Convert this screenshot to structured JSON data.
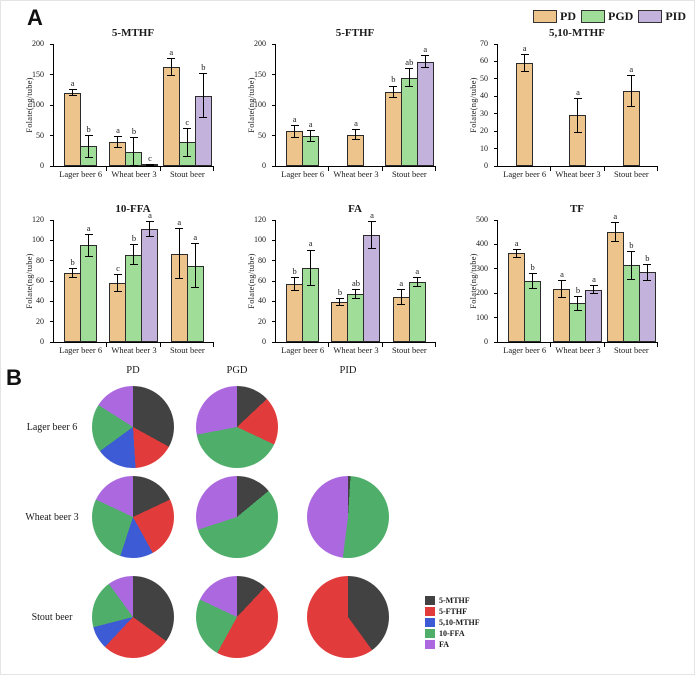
{
  "panel_a": {
    "label": "A",
    "legend": [
      {
        "name": "PD",
        "color": "#EDC48C"
      },
      {
        "name": "PGD",
        "color": "#A0DD99"
      },
      {
        "name": "PID",
        "color": "#C2B2DC"
      }
    ]
  },
  "chart_data": [
    {
      "type": "bar",
      "title": "5-MTHF",
      "ylabel": "Folate(ng/tube)",
      "ylim": [
        0,
        200
      ],
      "ytick_step": 50,
      "categories": [
        "Lager beer 6",
        "Wheat beer 3",
        "Stout beer"
      ],
      "series_names": [
        "PD",
        "PGD",
        "PID"
      ],
      "groups": [
        [
          {
            "series": "PD",
            "value": 120,
            "err": 6,
            "letter": "a"
          },
          {
            "series": "PGD",
            "value": 32,
            "err": 19,
            "letter": "b"
          }
        ],
        [
          {
            "series": "PD",
            "value": 40,
            "err": 10,
            "letter": "a"
          },
          {
            "series": "PGD",
            "value": 23,
            "err": 25,
            "letter": "b"
          },
          {
            "series": "PID",
            "value": 2,
            "err": 2,
            "letter": "c"
          }
        ],
        [
          {
            "series": "PD",
            "value": 162,
            "err": 15,
            "letter": "a"
          },
          {
            "series": "PGD",
            "value": 39,
            "err": 24,
            "letter": "c"
          },
          {
            "series": "PID",
            "value": 115,
            "err": 37,
            "letter": "b"
          }
        ]
      ]
    },
    {
      "type": "bar",
      "title": "5-FTHF",
      "ylabel": "Folate(ng/tube)",
      "ylim": [
        0,
        200
      ],
      "ytick_step": 50,
      "categories": [
        "Lager beer 6",
        "Wheat beer 3",
        "Stout beer"
      ],
      "series_names": [
        "PD",
        "PGD",
        "PID"
      ],
      "groups": [
        [
          {
            "series": "PD",
            "value": 57,
            "err": 11,
            "letter": "a"
          },
          {
            "series": "PGD",
            "value": 49,
            "err": 10,
            "letter": "a"
          }
        ],
        [
          {
            "series": "PD",
            "value": 51,
            "err": 9,
            "letter": "a"
          }
        ],
        [
          {
            "series": "PD",
            "value": 122,
            "err": 10,
            "letter": "b"
          },
          {
            "series": "PGD",
            "value": 145,
            "err": 15,
            "letter": "ab"
          },
          {
            "series": "PID",
            "value": 171,
            "err": 11,
            "letter": "a"
          }
        ]
      ]
    },
    {
      "type": "bar",
      "title": "5,10-MTHF",
      "ylabel": "Folate(ng/tube)",
      "ylim": [
        0,
        70
      ],
      "ytick_step": 10,
      "categories": [
        "Lager beer 6",
        "Wheat beer 3",
        "Stout beer"
      ],
      "series_names": [
        "PD",
        "PGD",
        "PID"
      ],
      "groups": [
        [
          {
            "series": "PD",
            "value": 59,
            "err": 5,
            "letter": "a"
          }
        ],
        [
          {
            "series": "PD",
            "value": 29,
            "err": 10,
            "letter": "a"
          }
        ],
        [
          {
            "series": "PD",
            "value": 43,
            "err": 9,
            "letter": "a"
          }
        ]
      ]
    },
    {
      "type": "bar",
      "title": "10-FFA",
      "ylabel": "Folate(ng/tube)",
      "ylim": [
        0,
        120
      ],
      "ytick_step": 20,
      "categories": [
        "Lager beer 6",
        "Wheat beer 3",
        "Stout beer"
      ],
      "series_names": [
        "PD",
        "PGD",
        "PID"
      ],
      "groups": [
        [
          {
            "series": "PD",
            "value": 68,
            "err": 5,
            "letter": "b"
          },
          {
            "series": "PGD",
            "value": 95,
            "err": 11,
            "letter": "a"
          }
        ],
        [
          {
            "series": "PD",
            "value": 58,
            "err": 9,
            "letter": "c"
          },
          {
            "series": "PGD",
            "value": 86,
            "err": 10,
            "letter": "b"
          },
          {
            "series": "PID",
            "value": 111,
            "err": 8,
            "letter": "a"
          }
        ],
        [
          {
            "series": "PD",
            "value": 87,
            "err": 25,
            "letter": "a"
          },
          {
            "series": "PGD",
            "value": 75,
            "err": 22,
            "letter": "a"
          }
        ]
      ]
    },
    {
      "type": "bar",
      "title": "FA",
      "ylabel": "Folate(ng/tube)",
      "ylim": [
        0,
        120
      ],
      "ytick_step": 20,
      "categories": [
        "Lager beer 6",
        "Wheat beer 3",
        "Stout beer"
      ],
      "series_names": [
        "PD",
        "PGD",
        "PID"
      ],
      "groups": [
        [
          {
            "series": "PD",
            "value": 57,
            "err": 7,
            "letter": "b"
          },
          {
            "series": "PGD",
            "value": 73,
            "err": 18,
            "letter": "a"
          }
        ],
        [
          {
            "series": "PD",
            "value": 39,
            "err": 4,
            "letter": "b"
          },
          {
            "series": "PGD",
            "value": 47,
            "err": 5,
            "letter": "ab"
          },
          {
            "series": "PID",
            "value": 105,
            "err": 14,
            "letter": "a"
          }
        ],
        [
          {
            "series": "PD",
            "value": 44,
            "err": 8,
            "letter": "a"
          },
          {
            "series": "PGD",
            "value": 59,
            "err": 5,
            "letter": "a"
          }
        ]
      ]
    },
    {
      "type": "bar",
      "title": "TF",
      "ylabel": "Folate(ng/tube)",
      "ylim": [
        0,
        500
      ],
      "ytick_step": 100,
      "categories": [
        "Lager beer 6",
        "Wheat beer 3",
        "Stout beer"
      ],
      "series_names": [
        "PD",
        "PGD",
        "PID"
      ],
      "groups": [
        [
          {
            "series": "PD",
            "value": 363,
            "err": 18,
            "letter": "a"
          },
          {
            "series": "PGD",
            "value": 250,
            "err": 32,
            "letter": "b"
          }
        ],
        [
          {
            "series": "PD",
            "value": 218,
            "err": 38,
            "letter": "a"
          },
          {
            "series": "PGD",
            "value": 158,
            "err": 30,
            "letter": "b"
          },
          {
            "series": "PID",
            "value": 215,
            "err": 20,
            "letter": "a"
          }
        ],
        [
          {
            "series": "PD",
            "value": 450,
            "err": 40,
            "letter": "a"
          },
          {
            "series": "PGD",
            "value": 315,
            "err": 60,
            "letter": "b"
          },
          {
            "series": "PID",
            "value": 285,
            "err": 35,
            "letter": "b"
          }
        ]
      ]
    }
  ],
  "panel_b": {
    "label": "B",
    "col_headers": [
      "PD",
      "PGD",
      "PID"
    ],
    "slice_order": [
      "5-MTHF",
      "5-FTHF",
      "5,10-MTHF",
      "10-FFA",
      "FA"
    ],
    "legend": [
      {
        "name": "5-MTHF",
        "color": "#424242"
      },
      {
        "name": "5-FTHF",
        "color": "#E23B3B"
      },
      {
        "name": "5,10-MTHF",
        "color": "#3D5BD5"
      },
      {
        "name": "10-FFA",
        "color": "#4EAE6A"
      },
      {
        "name": "FA",
        "color": "#AB68DF"
      }
    ],
    "rows": [
      {
        "label": "Lager beer 6",
        "pies": [
          [
            33,
            16,
            16,
            19,
            16
          ],
          [
            13,
            19,
            0,
            40,
            28
          ],
          null
        ]
      },
      {
        "label": "Wheat beer 3",
        "pies": [
          [
            18,
            24,
            13,
            27,
            18
          ],
          [
            14,
            0,
            0,
            56,
            30
          ],
          [
            1,
            0,
            0,
            51,
            48
          ]
        ]
      },
      {
        "label": "Stout beer",
        "pies": [
          [
            35,
            27,
            9,
            19,
            10
          ],
          [
            12,
            46,
            0,
            24,
            18
          ],
          [
            40,
            60,
            0,
            0,
            0
          ]
        ]
      }
    ]
  }
}
